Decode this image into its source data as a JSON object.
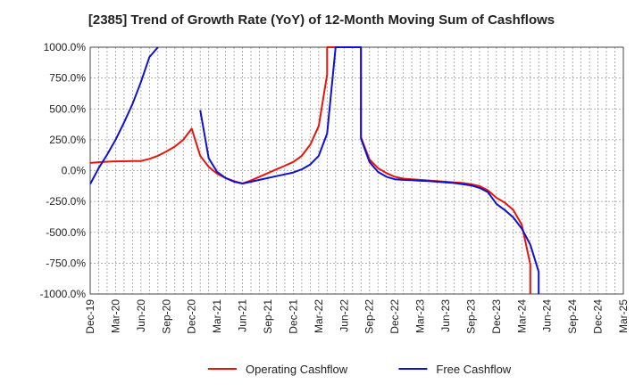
{
  "chart_data": {
    "type": "line",
    "title": "[2385]  Trend of Growth Rate (YoY) of 12-Month Moving Sum of Cashflows",
    "xlabel": "",
    "ylabel": "",
    "ylim": [
      -1000,
      1000
    ],
    "y_ticks": [
      "1000.0%",
      "750.0%",
      "500.0%",
      "250.0%",
      "0.0%",
      "-250.0%",
      "-500.0%",
      "-750.0%",
      "-1000.0%"
    ],
    "y_tick_values": [
      1000,
      750,
      500,
      250,
      0,
      -250,
      -500,
      -750,
      -1000
    ],
    "x_ticks": [
      "Dec-19",
      "Mar-20",
      "Jun-20",
      "Sep-20",
      "Dec-20",
      "Mar-21",
      "Jun-21",
      "Sep-21",
      "Dec-21",
      "Mar-22",
      "Jun-22",
      "Sep-22",
      "Dec-22",
      "Mar-23",
      "Jun-23",
      "Sep-23",
      "Dec-23",
      "Mar-24",
      "Jun-24",
      "Sep-24",
      "Dec-24",
      "Mar-25"
    ],
    "x_range": [
      "2019-12",
      "2025-03"
    ],
    "grid": true,
    "legend_position": "bottom",
    "series": [
      {
        "name": "Operating Cashflow",
        "color": "#e8140c",
        "points": [
          [
            "2019-12",
            62
          ],
          [
            "2020-01",
            68
          ],
          [
            "2020-02",
            72
          ],
          [
            "2020-03",
            75
          ],
          [
            "2020-04",
            76
          ],
          [
            "2020-05",
            77
          ],
          [
            "2020-06",
            78
          ],
          [
            "2020-07",
            95
          ],
          [
            "2020-08",
            120
          ],
          [
            "2020-09",
            155
          ],
          [
            "2020-10",
            195
          ],
          [
            "2020-11",
            250
          ],
          [
            "2020-12",
            340
          ],
          [
            "2021-01",
            120
          ],
          [
            "2021-02",
            30
          ],
          [
            "2021-03",
            -25
          ],
          [
            "2021-04",
            -60
          ],
          [
            "2021-05",
            -85
          ],
          [
            "2021-06",
            -105
          ],
          [
            "2021-07",
            -80
          ],
          [
            "2021-08",
            -50
          ],
          [
            "2021-09",
            -20
          ],
          [
            "2021-10",
            10
          ],
          [
            "2021-11",
            40
          ],
          [
            "2021-12",
            70
          ],
          [
            "2022-01",
            120
          ],
          [
            "2022-02",
            210
          ],
          [
            "2022-03",
            360
          ],
          [
            "2022-04",
            780
          ],
          [
            "2022-04",
            1000
          ],
          [
            "2022-08",
            1000
          ],
          [
            "2022-08",
            270
          ],
          [
            "2022-09",
            90
          ],
          [
            "2022-10",
            20
          ],
          [
            "2022-11",
            -20
          ],
          [
            "2022-12",
            -50
          ],
          [
            "2023-01",
            -65
          ],
          [
            "2023-02",
            -70
          ],
          [
            "2023-03",
            -75
          ],
          [
            "2023-04",
            -80
          ],
          [
            "2023-05",
            -85
          ],
          [
            "2023-06",
            -90
          ],
          [
            "2023-07",
            -95
          ],
          [
            "2023-08",
            -100
          ],
          [
            "2023-09",
            -110
          ],
          [
            "2023-10",
            -125
          ],
          [
            "2023-11",
            -160
          ],
          [
            "2023-12",
            -220
          ],
          [
            "2024-01",
            -260
          ],
          [
            "2024-02",
            -320
          ],
          [
            "2024-03",
            -440
          ],
          [
            "2024-04",
            -760
          ],
          [
            "2024-04",
            -1000
          ]
        ]
      },
      {
        "name": "Free Cashflow",
        "color": "#1010d0",
        "segments": [
          [
            [
              "2019-12",
              -110
            ],
            [
              "2020-01",
              20
            ],
            [
              "2020-02",
              130
            ],
            [
              "2020-03",
              250
            ],
            [
              "2020-04",
              390
            ],
            [
              "2020-05",
              540
            ],
            [
              "2020-06",
              720
            ],
            [
              "2020-07",
              920
            ],
            [
              "2020-08",
              1000
            ]
          ],
          [
            [
              "2021-01",
              490
            ],
            [
              "2021-02",
              100
            ],
            [
              "2021-03",
              -10
            ],
            [
              "2021-04",
              -60
            ],
            [
              "2021-05",
              -90
            ],
            [
              "2021-06",
              -105
            ],
            [
              "2021-07",
              -90
            ],
            [
              "2021-08",
              -75
            ],
            [
              "2021-09",
              -60
            ],
            [
              "2021-10",
              -45
            ],
            [
              "2021-11",
              -30
            ],
            [
              "2021-12",
              -15
            ],
            [
              "2022-01",
              10
            ],
            [
              "2022-02",
              50
            ],
            [
              "2022-03",
              120
            ],
            [
              "2022-04",
              300
            ],
            [
              "2022-05",
              1000
            ],
            [
              "2022-08",
              1000
            ],
            [
              "2022-08",
              260
            ],
            [
              "2022-09",
              70
            ],
            [
              "2022-10",
              -10
            ],
            [
              "2022-11",
              -50
            ],
            [
              "2022-12",
              -70
            ],
            [
              "2023-01",
              -75
            ],
            [
              "2023-02",
              -78
            ],
            [
              "2023-03",
              -82
            ],
            [
              "2023-04",
              -85
            ],
            [
              "2023-05",
              -90
            ],
            [
              "2023-06",
              -95
            ],
            [
              "2023-07",
              -100
            ],
            [
              "2023-08",
              -110
            ],
            [
              "2023-09",
              -120
            ],
            [
              "2023-10",
              -140
            ],
            [
              "2023-11",
              -175
            ],
            [
              "2023-12",
              -270
            ],
            [
              "2024-01",
              -320
            ],
            [
              "2024-02",
              -380
            ],
            [
              "2024-03",
              -470
            ],
            [
              "2024-04",
              -600
            ],
            [
              "2024-05",
              -820
            ],
            [
              "2024-05",
              -1000
            ]
          ]
        ]
      }
    ]
  }
}
